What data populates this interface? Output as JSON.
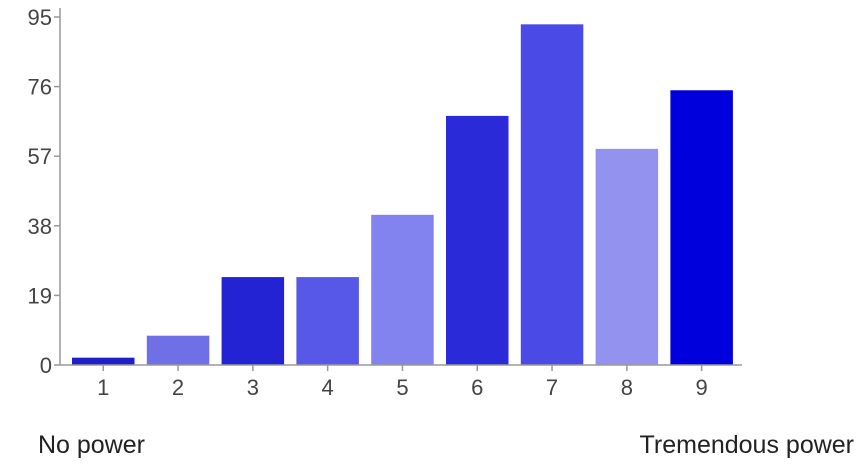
{
  "chart_data": {
    "type": "bar",
    "categories": [
      "1",
      "2",
      "3",
      "4",
      "5",
      "6",
      "7",
      "8",
      "9"
    ],
    "values": [
      2,
      8,
      24,
      24,
      41,
      68,
      93,
      59,
      75
    ],
    "y_ticks": [
      "0",
      "19",
      "38",
      "57",
      "76",
      "95"
    ],
    "ylim": [
      0,
      95
    ],
    "grid": false,
    "legend": "none",
    "colors": [
      "#1f1fc8",
      "#6f6fe6",
      "#2323d4",
      "#5858e8",
      "#8383ef",
      "#2a2ad8",
      "#4a4ae6",
      "#9393ef",
      "#0000dd"
    ],
    "scale_labels": {
      "low": "No power",
      "high": "Tremendous power"
    }
  }
}
